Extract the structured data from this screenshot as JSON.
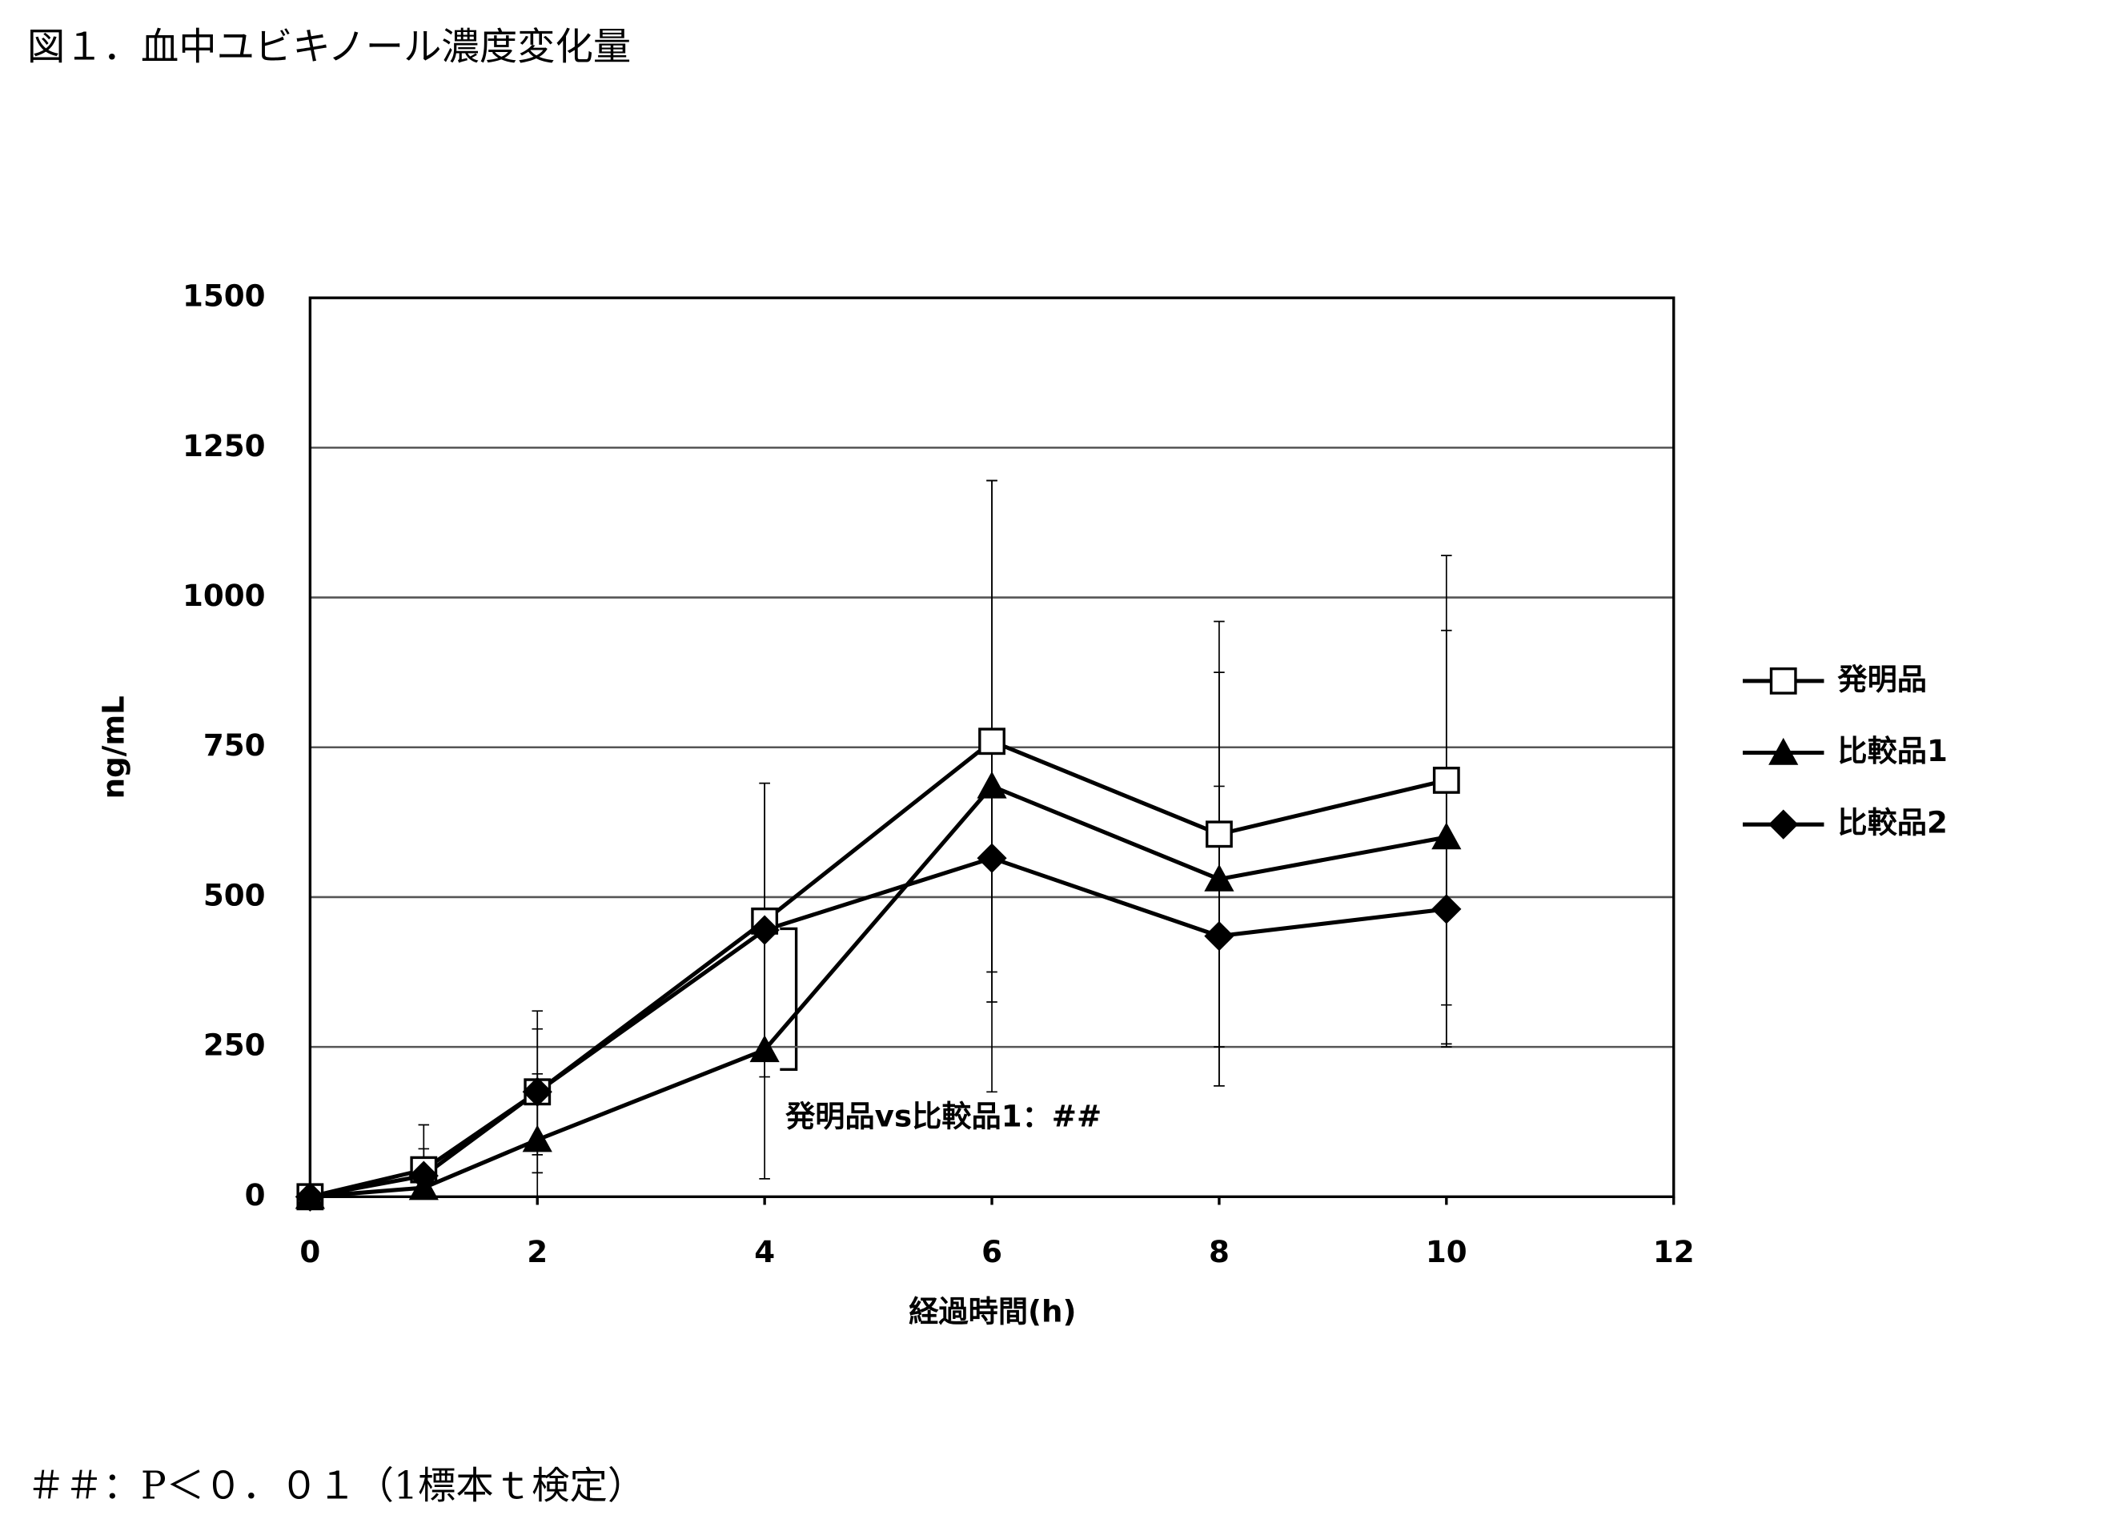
{
  "chart_data": {
    "type": "line",
    "title": "図１．血中ユビキノール濃度変化量",
    "x_label": "経過時間(h)",
    "y_label": "ng/mL",
    "x": [
      0,
      1,
      2,
      4,
      6,
      8,
      10
    ],
    "series": [
      {
        "name": "発明品",
        "color": "#000000",
        "marker": "square-open",
        "values": [
          0,
          45,
          175,
          460,
          760,
          605,
          695
        ],
        "errors": [
          0,
          75,
          135,
          230,
          435,
          355,
          375
        ]
      },
      {
        "name": "比較品1",
        "color": "#000000",
        "marker": "triangle",
        "values": [
          0,
          15,
          95,
          245,
          685,
          530,
          600
        ],
        "errors": [
          0,
          50,
          110,
          215,
          510,
          345,
          345
        ]
      },
      {
        "name": "比較品2",
        "color": "#000000",
        "marker": "diamond",
        "values": [
          0,
          35,
          175,
          445,
          565,
          435,
          480
        ],
        "errors": [
          0,
          45,
          105,
          245,
          190,
          250,
          230
        ]
      }
    ],
    "xlim": [
      0,
      12
    ],
    "xticks": [
      0,
      2,
      4,
      6,
      8,
      10,
      12
    ],
    "ylim": [
      0,
      1500
    ],
    "yticks": [
      0,
      250,
      500,
      750,
      1000,
      1250,
      1500
    ],
    "grid": true,
    "legend": "right",
    "annotation": "発明品vs比較品1：##",
    "footnote": "＃＃：P＜０．０１（1標本ｔ検定）"
  }
}
